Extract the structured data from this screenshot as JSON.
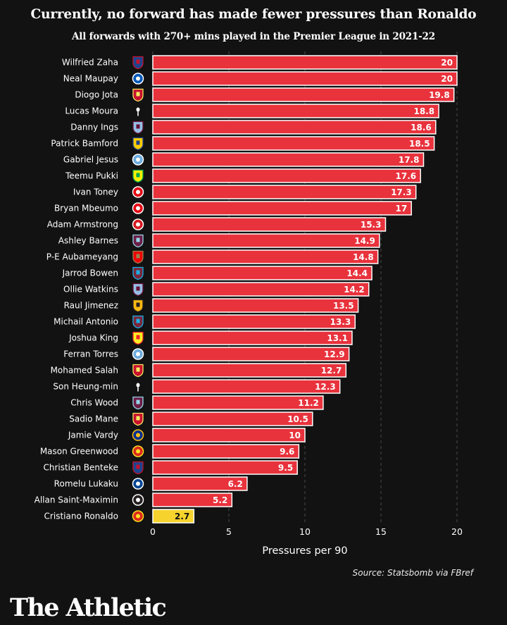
{
  "header": {
    "title": "Currently, no forward has made fewer pressures than Ronaldo",
    "subtitle": "All forwards with 270+ mins played in the Premier League in 2021-22"
  },
  "footer": {
    "source": "Source: Statsbomb via FBref",
    "brand": "The Athletic"
  },
  "colors": {
    "background": "#121212",
    "bar": "#e8323c",
    "highlight": "#f6d32d",
    "bar_border": "#ffffff",
    "gridline": "#4a4a4a"
  },
  "chart_data": {
    "type": "bar",
    "orientation": "horizontal",
    "title": "Currently, no forward has made fewer pressures than Ronaldo",
    "subtitle": "All forwards with 270+ mins played in the Premier League in 2021-22",
    "xlabel": "Pressures per 90",
    "ylabel": "",
    "xlim": [
      0,
      20
    ],
    "xticks": [
      0,
      5,
      10,
      15,
      20
    ],
    "grid": "vertical dashed",
    "highlight": "Cristiano Ronaldo",
    "rows": [
      {
        "player": "Wilfried Zaha",
        "club": "Crystal Palace",
        "value": 20,
        "label": "20"
      },
      {
        "player": "Neal Maupay",
        "club": "Brighton",
        "value": 20,
        "label": "20"
      },
      {
        "player": "Diogo Jota",
        "club": "Liverpool",
        "value": 19.8,
        "label": "19.8"
      },
      {
        "player": "Lucas Moura",
        "club": "Tottenham",
        "value": 18.8,
        "label": "18.8"
      },
      {
        "player": "Danny Ings",
        "club": "Aston Villa",
        "value": 18.6,
        "label": "18.6"
      },
      {
        "player": "Patrick Bamford",
        "club": "Leeds",
        "value": 18.5,
        "label": "18.5"
      },
      {
        "player": "Gabriel Jesus",
        "club": "Man City",
        "value": 17.8,
        "label": "17.8"
      },
      {
        "player": "Teemu Pukki",
        "club": "Norwich",
        "value": 17.6,
        "label": "17.6"
      },
      {
        "player": "Ivan Toney",
        "club": "Brentford",
        "value": 17.3,
        "label": "17.3"
      },
      {
        "player": "Bryan Mbeumo",
        "club": "Brentford",
        "value": 17,
        "label": "17"
      },
      {
        "player": "Adam Armstrong",
        "club": "Southampton",
        "value": 15.3,
        "label": "15.3"
      },
      {
        "player": "Ashley Barnes",
        "club": "Burnley",
        "value": 14.9,
        "label": "14.9"
      },
      {
        "player": "P-E Aubameyang",
        "club": "Arsenal",
        "value": 14.8,
        "label": "14.8"
      },
      {
        "player": "Jarrod Bowen",
        "club": "West Ham",
        "value": 14.4,
        "label": "14.4"
      },
      {
        "player": "Ollie Watkins",
        "club": "Aston Villa",
        "value": 14.2,
        "label": "14.2"
      },
      {
        "player": "Raul Jimenez",
        "club": "Wolves",
        "value": 13.5,
        "label": "13.5"
      },
      {
        "player": "Michail Antonio",
        "club": "West Ham",
        "value": 13.3,
        "label": "13.3"
      },
      {
        "player": "Joshua King",
        "club": "Watford",
        "value": 13.1,
        "label": "13.1"
      },
      {
        "player": "Ferran Torres",
        "club": "Man City",
        "value": 12.9,
        "label": "12.9"
      },
      {
        "player": "Mohamed Salah",
        "club": "Liverpool",
        "value": 12.7,
        "label": "12.7"
      },
      {
        "player": "Son Heung-min",
        "club": "Tottenham",
        "value": 12.3,
        "label": "12.3"
      },
      {
        "player": "Chris Wood",
        "club": "Burnley",
        "value": 11.2,
        "label": "11.2"
      },
      {
        "player": "Sadio Mane",
        "club": "Liverpool",
        "value": 10.5,
        "label": "10.5"
      },
      {
        "player": "Jamie Vardy",
        "club": "Leicester",
        "value": 10,
        "label": "10"
      },
      {
        "player": "Mason Greenwood",
        "club": "Man United",
        "value": 9.6,
        "label": "9.6"
      },
      {
        "player": "Christian Benteke",
        "club": "Crystal Palace",
        "value": 9.5,
        "label": "9.5"
      },
      {
        "player": "Romelu Lukaku",
        "club": "Chelsea",
        "value": 6.2,
        "label": "6.2"
      },
      {
        "player": "Allan Saint-Maximin",
        "club": "Newcastle",
        "value": 5.2,
        "label": "5.2"
      },
      {
        "player": "Cristiano Ronaldo",
        "club": "Man United",
        "value": 2.7,
        "label": "2.7"
      }
    ]
  },
  "crest_styles": {
    "Crystal Palace": {
      "fill": "#1b458f",
      "accent": "#c4122e",
      "shape": "shield"
    },
    "Brighton": {
      "fill": "#0057b8",
      "accent": "#ffffff",
      "shape": "circle"
    },
    "Liverpool": {
      "fill": "#c8102e",
      "accent": "#f6eb61",
      "shape": "shield"
    },
    "Tottenham": {
      "fill": "#ffffff",
      "accent": "#132257",
      "shape": "cockerel"
    },
    "Aston Villa": {
      "fill": "#95bfe5",
      "accent": "#670e36",
      "shape": "shield"
    },
    "Leeds": {
      "fill": "#ffcd00",
      "accent": "#1d428a",
      "shape": "shield"
    },
    "Man City": {
      "fill": "#6cabdd",
      "accent": "#ffffff",
      "shape": "circle"
    },
    "Norwich": {
      "fill": "#fff200",
      "accent": "#00a650",
      "shape": "shield"
    },
    "Brentford": {
      "fill": "#e30613",
      "accent": "#ffffff",
      "shape": "circle"
    },
    "Southampton": {
      "fill": "#d71920",
      "accent": "#ffffff",
      "shape": "circle"
    },
    "Burnley": {
      "fill": "#6c1d45",
      "accent": "#99d6ea",
      "shape": "shield"
    },
    "Arsenal": {
      "fill": "#ef0107",
      "accent": "#9c824a",
      "shape": "shield"
    },
    "West Ham": {
      "fill": "#7a263a",
      "accent": "#1bb1e7",
      "shape": "shield"
    },
    "Wolves": {
      "fill": "#fdb913",
      "accent": "#231f20",
      "shape": "shield"
    },
    "Watford": {
      "fill": "#fbee23",
      "accent": "#ed2127",
      "shape": "shield"
    },
    "Leicester": {
      "fill": "#003090",
      "accent": "#fdbe11",
      "shape": "circle"
    },
    "Man United": {
      "fill": "#da291c",
      "accent": "#fbe122",
      "shape": "circle"
    },
    "Chelsea": {
      "fill": "#034694",
      "accent": "#ffffff",
      "shape": "circle"
    },
    "Newcastle": {
      "fill": "#241f20",
      "accent": "#ffffff",
      "shape": "circle"
    }
  }
}
